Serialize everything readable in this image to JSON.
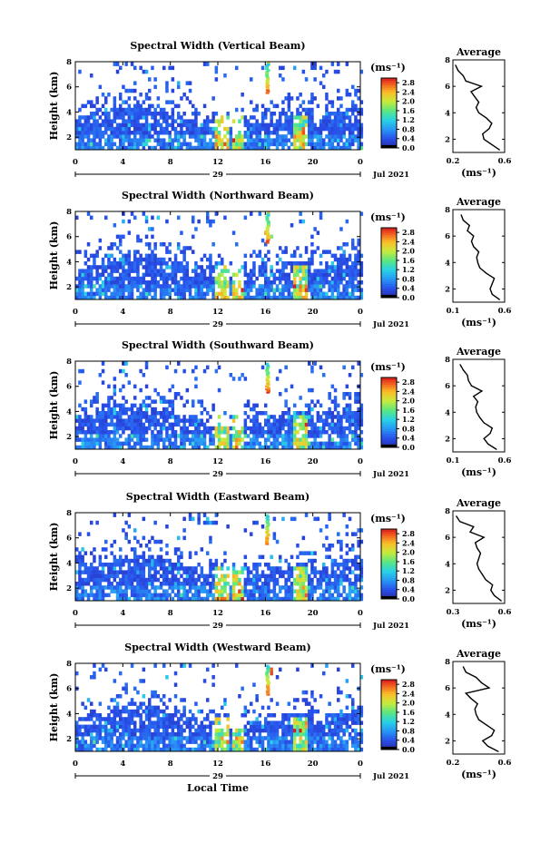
{
  "chart_data": [
    {
      "type": "heatmap",
      "title": "Spectral Width (Vertical Beam)",
      "ylabel": "Height (km)",
      "xlabel": "",
      "x_ticks": [
        "0",
        "4",
        "8",
        "12",
        "16",
        "20",
        "0"
      ],
      "y_ticks": [
        "2",
        "4",
        "6",
        "8"
      ],
      "xlim": [
        0,
        24
      ],
      "ylim": [
        1,
        8
      ],
      "date_day": "29",
      "date_label": "Jul 2021",
      "colorbar": {
        "unit": "(ms⁻¹)",
        "ticks": [
          "0.0",
          "0.4",
          "0.8",
          "1.2",
          "1.6",
          "2.0",
          "2.4",
          "2.8"
        ],
        "range": [
          0,
          3
        ]
      },
      "average_profile": {
        "title": "Average",
        "xlabel": "(ms⁻¹)",
        "x_ticks": [
          "0.2",
          "0.6"
        ],
        "y_ticks": [
          "2",
          "4",
          "6",
          "8"
        ],
        "xlim": [
          0.2,
          0.6
        ],
        "ylim": [
          1,
          8
        ],
        "height": [
          1.2,
          1.6,
          2.0,
          2.4,
          2.8,
          3.2,
          3.6,
          4.0,
          4.4,
          4.8,
          5.2,
          5.6,
          6.0,
          6.4,
          6.8,
          7.2,
          7.6
        ],
        "width": [
          0.56,
          0.5,
          0.44,
          0.43,
          0.48,
          0.5,
          0.46,
          0.4,
          0.38,
          0.4,
          0.37,
          0.34,
          0.42,
          0.3,
          0.28,
          0.24,
          0.22
        ]
      }
    },
    {
      "type": "heatmap",
      "title": "Spectral Width (Northward Beam)",
      "ylabel": "Height (km)",
      "xlabel": "",
      "x_ticks": [
        "0",
        "4",
        "8",
        "12",
        "16",
        "20",
        "0"
      ],
      "y_ticks": [
        "2",
        "4",
        "6",
        "8"
      ],
      "xlim": [
        0,
        24
      ],
      "ylim": [
        1,
        8
      ],
      "date_day": "29",
      "date_label": "Jul 2021",
      "colorbar": {
        "unit": "(ms⁻¹)",
        "ticks": [
          "0.0",
          "0.4",
          "0.8",
          "1.2",
          "1.6",
          "2.0",
          "2.4",
          "2.8"
        ],
        "range": [
          0,
          3
        ]
      },
      "average_profile": {
        "title": "Average",
        "xlabel": "(ms⁻¹)",
        "x_ticks": [
          "0.1",
          "0.6"
        ],
        "y_ticks": [
          "2",
          "4",
          "6",
          "8"
        ],
        "xlim": [
          0.1,
          0.6
        ],
        "ylim": [
          1,
          8
        ],
        "height": [
          1.2,
          1.6,
          2.0,
          2.4,
          2.8,
          3.2,
          3.6,
          4.0,
          4.4,
          4.8,
          5.2,
          5.6,
          6.0,
          6.4,
          6.8,
          7.2,
          7.6
        ],
        "width": [
          0.55,
          0.48,
          0.46,
          0.48,
          0.5,
          0.42,
          0.36,
          0.34,
          0.33,
          0.35,
          0.3,
          0.28,
          0.3,
          0.24,
          0.26,
          0.2,
          0.18
        ]
      }
    },
    {
      "type": "heatmap",
      "title": "Spectral Width (Southward Beam)",
      "ylabel": "Height (km)",
      "xlabel": "",
      "x_ticks": [
        "0",
        "4",
        "8",
        "12",
        "16",
        "20",
        "0"
      ],
      "y_ticks": [
        "2",
        "4",
        "6",
        "8"
      ],
      "xlim": [
        0,
        24
      ],
      "ylim": [
        1,
        8
      ],
      "date_day": "29",
      "date_label": "Jul 2021",
      "colorbar": {
        "unit": "(ms⁻¹)",
        "ticks": [
          "0.0",
          "0.4",
          "0.8",
          "1.2",
          "1.6",
          "2.0",
          "2.4",
          "2.8"
        ],
        "range": [
          0,
          3
        ]
      },
      "average_profile": {
        "title": "Average",
        "xlabel": "(ms⁻¹)",
        "x_ticks": [
          "0.1",
          "0.6"
        ],
        "y_ticks": [
          "2",
          "4",
          "6",
          "8"
        ],
        "xlim": [
          0.1,
          0.6
        ],
        "ylim": [
          1,
          8
        ],
        "height": [
          1.2,
          1.6,
          2.0,
          2.4,
          2.8,
          3.2,
          3.6,
          4.0,
          4.4,
          4.8,
          5.2,
          5.6,
          6.0,
          6.4,
          6.8,
          7.2,
          7.6
        ],
        "width": [
          0.52,
          0.44,
          0.4,
          0.46,
          0.48,
          0.4,
          0.36,
          0.33,
          0.32,
          0.34,
          0.3,
          0.38,
          0.28,
          0.25,
          0.24,
          0.2,
          0.17
        ]
      }
    },
    {
      "type": "heatmap",
      "title": "Spectral Width (Eastward Beam)",
      "ylabel": "Height (km)",
      "xlabel": "",
      "x_ticks": [
        "0",
        "4",
        "8",
        "12",
        "16",
        "20",
        "0"
      ],
      "y_ticks": [
        "2",
        "4",
        "6",
        "8"
      ],
      "xlim": [
        0,
        24
      ],
      "ylim": [
        1,
        8
      ],
      "date_day": "29",
      "date_label": "Jul 2021",
      "colorbar": {
        "unit": "(ms⁻¹)",
        "ticks": [
          "0.0",
          "0.4",
          "0.8",
          "1.2",
          "1.6",
          "2.0",
          "2.4",
          "2.8"
        ],
        "range": [
          0,
          3
        ]
      },
      "average_profile": {
        "title": "Average",
        "xlabel": "(ms⁻¹)",
        "x_ticks": [
          "0.3",
          "0.6"
        ],
        "y_ticks": [
          "2",
          "4",
          "6",
          "8"
        ],
        "xlim": [
          0.3,
          0.6
        ],
        "ylim": [
          1,
          8
        ],
        "height": [
          1.2,
          1.6,
          2.0,
          2.4,
          2.8,
          3.2,
          3.6,
          4.0,
          4.4,
          4.8,
          5.2,
          5.6,
          6.0,
          6.4,
          6.8,
          7.2,
          7.6
        ],
        "width": [
          0.58,
          0.54,
          0.52,
          0.53,
          0.49,
          0.47,
          0.45,
          0.44,
          0.45,
          0.46,
          0.44,
          0.43,
          0.48,
          0.4,
          0.42,
          0.34,
          0.32
        ]
      }
    },
    {
      "type": "heatmap",
      "title": "Spectral Width (Westward Beam)",
      "ylabel": "Height (km)",
      "xlabel": "Local Time",
      "x_ticks": [
        "0",
        "4",
        "8",
        "12",
        "16",
        "20",
        "0"
      ],
      "y_ticks": [
        "2",
        "4",
        "6",
        "8"
      ],
      "xlim": [
        0,
        24
      ],
      "ylim": [
        1,
        8
      ],
      "date_day": "29",
      "date_label": "Jul 2021",
      "colorbar": {
        "unit": "(ms⁻¹)",
        "ticks": [
          "0.0",
          "0.4",
          "0.8",
          "1.2",
          "1.6",
          "2.0",
          "2.4",
          "2.8"
        ],
        "range": [
          0,
          3
        ]
      },
      "average_profile": {
        "title": "Average",
        "xlabel": "(ms⁻¹)",
        "x_ticks": [
          "0.2",
          "0.6"
        ],
        "y_ticks": [
          "2",
          "4",
          "6",
          "8"
        ],
        "xlim": [
          0.2,
          0.6
        ],
        "ylim": [
          1,
          8
        ],
        "height": [
          1.2,
          1.6,
          2.0,
          2.4,
          2.8,
          3.2,
          3.6,
          4.0,
          4.4,
          4.8,
          5.2,
          5.6,
          6.0,
          6.4,
          6.8,
          7.2,
          7.6
        ],
        "width": [
          0.55,
          0.47,
          0.43,
          0.5,
          0.52,
          0.46,
          0.4,
          0.38,
          0.37,
          0.39,
          0.34,
          0.3,
          0.48,
          0.42,
          0.38,
          0.3,
          0.28
        ]
      }
    }
  ]
}
